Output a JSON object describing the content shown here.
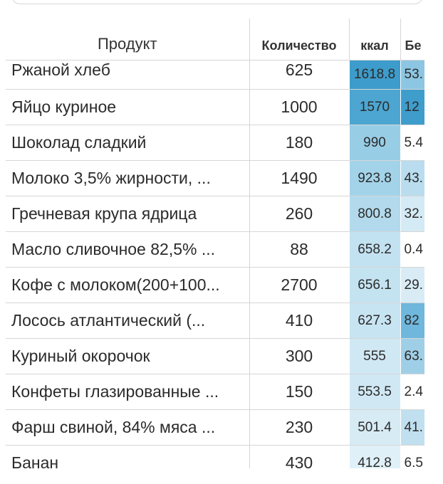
{
  "headers": {
    "product": "Продукт",
    "quantity": "Количество",
    "kcal": "ккал",
    "protein": "Бе"
  },
  "rows": [
    {
      "product": "Ржаной хлеб",
      "quantity": "625",
      "kcal": "1618.8",
      "protein": "53.",
      "kcal_bg": "#3d9ccb",
      "prot_bg": "#8cc6e2"
    },
    {
      "product": "Яйцо куриное",
      "quantity": "1000",
      "kcal": "1570",
      "protein": "12",
      "kcal_bg": "#4da6d1",
      "prot_bg": "#3f9dcc"
    },
    {
      "product": "Шоколад сладкий",
      "quantity": "180",
      "kcal": "990",
      "protein": "5.4",
      "kcal_bg": "#98cde6",
      "prot_bg": "#ffffff"
    },
    {
      "product": "Молоко 3,5% жирности, ...",
      "quantity": "1490",
      "kcal": "923.8",
      "protein": "43.",
      "kcal_bg": "#a3d3e9",
      "prot_bg": "#b9ddee"
    },
    {
      "product": "Гречневая крупа ядрица",
      "quantity": "260",
      "kcal": "800.8",
      "protein": "32.",
      "kcal_bg": "#b2daec",
      "prot_bg": "#d4eaf5"
    },
    {
      "product": "Масло сливочное 82,5% ...",
      "quantity": "88",
      "kcal": "658.2",
      "protein": "0.4",
      "kcal_bg": "#c3e2f1",
      "prot_bg": "#ffffff"
    },
    {
      "product": "Кофе с молоком(200+100...",
      "quantity": "2700",
      "kcal": "656.1",
      "protein": "29.",
      "kcal_bg": "#c4e3f1",
      "prot_bg": "#d9ecf6"
    },
    {
      "product": "Лосось атлантический (...",
      "quantity": "410",
      "kcal": "627.3",
      "protein": "82",
      "kcal_bg": "#c7e4f2",
      "prot_bg": "#6fb7dc"
    },
    {
      "product": "Куриный окорочок",
      "quantity": "300",
      "kcal": "555",
      "protein": "63.",
      "kcal_bg": "#d0e8f4",
      "prot_bg": "#9fcfe6"
    },
    {
      "product": "Конфеты глазированные ...",
      "quantity": "150",
      "kcal": "553.5",
      "protein": "2.4",
      "kcal_bg": "#d0e8f4",
      "prot_bg": "#ffffff"
    },
    {
      "product": "Фарш свиной, 84% мяса ...",
      "quantity": "230",
      "kcal": "501.4",
      "protein": "41.",
      "kcal_bg": "#d7ebf5",
      "prot_bg": "#c0e0ef"
    },
    {
      "product": "Банан",
      "quantity": "430",
      "kcal": "412.8",
      "protein": "6.5",
      "kcal_bg": "#e0f0f8",
      "prot_bg": "#ffffff"
    }
  ]
}
